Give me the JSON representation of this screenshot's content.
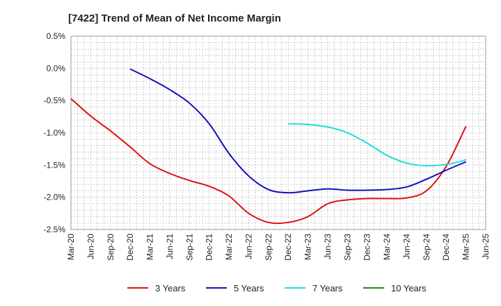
{
  "chart_data": {
    "type": "line",
    "title": "[7422]  Trend of Mean of Net Income Margin",
    "xlabel": "",
    "ylabel": "",
    "x_ticks": [
      "Mar-20",
      "Jun-20",
      "Sep-20",
      "Dec-20",
      "Mar-21",
      "Jun-21",
      "Sep-21",
      "Dec-21",
      "Mar-22",
      "Jun-22",
      "Sep-22",
      "Dec-22",
      "Mar-23",
      "Jun-23",
      "Sep-23",
      "Dec-23",
      "Mar-24",
      "Jun-24",
      "Sep-24",
      "Dec-24",
      "Mar-25",
      "Jun-25"
    ],
    "y_ticks": [
      0.5,
      0.0,
      -0.5,
      -1.0,
      -1.5,
      -2.0,
      -2.5
    ],
    "y_tick_labels": [
      "0.5%",
      "0.0%",
      "-0.5%",
      "-1.0%",
      "-1.5%",
      "-2.0%",
      "-2.5%"
    ],
    "ylim": [
      -2.5,
      0.5
    ],
    "grid": true,
    "legend_position": "bottom",
    "series": [
      {
        "name": "3 Years",
        "color": "#dd1111",
        "x": [
          "Mar-20",
          "Jun-20",
          "Sep-20",
          "Dec-20",
          "Mar-21",
          "Jun-21",
          "Sep-21",
          "Dec-21",
          "Mar-22",
          "Jun-22",
          "Sep-22",
          "Dec-22",
          "Mar-23",
          "Jun-23",
          "Sep-23",
          "Dec-23",
          "Mar-24",
          "Jun-24",
          "Sep-24",
          "Dec-24",
          "Mar-25"
        ],
        "values": [
          -0.47,
          -0.74,
          -0.97,
          -1.22,
          -1.48,
          -1.63,
          -1.74,
          -1.83,
          -1.98,
          -2.25,
          -2.39,
          -2.39,
          -2.3,
          -2.1,
          -2.04,
          -2.02,
          -2.02,
          -2.01,
          -1.9,
          -1.52,
          -0.9
        ]
      },
      {
        "name": "5 Years",
        "color": "#1111bb",
        "x": [
          "Dec-20",
          "Mar-21",
          "Jun-21",
          "Sep-21",
          "Dec-21",
          "Mar-22",
          "Jun-22",
          "Sep-22",
          "Dec-22",
          "Mar-23",
          "Jun-23",
          "Sep-23",
          "Dec-23",
          "Mar-24",
          "Jun-24",
          "Sep-24",
          "Dec-24",
          "Mar-25"
        ],
        "values": [
          -0.01,
          -0.16,
          -0.33,
          -0.54,
          -0.86,
          -1.32,
          -1.67,
          -1.88,
          -1.93,
          -1.9,
          -1.87,
          -1.89,
          -1.89,
          -1.88,
          -1.84,
          -1.72,
          -1.58,
          -1.45
        ]
      },
      {
        "name": "7 Years",
        "color": "#22dddd",
        "x": [
          "Dec-22",
          "Mar-23",
          "Jun-23",
          "Sep-23",
          "Dec-23",
          "Mar-24",
          "Jun-24",
          "Sep-24",
          "Dec-24",
          "Mar-25"
        ],
        "values": [
          -0.86,
          -0.87,
          -0.91,
          -1.0,
          -1.16,
          -1.35,
          -1.47,
          -1.51,
          -1.49,
          -1.42
        ]
      },
      {
        "name": "10 Years",
        "color": "#228822",
        "x": [],
        "values": []
      }
    ]
  }
}
